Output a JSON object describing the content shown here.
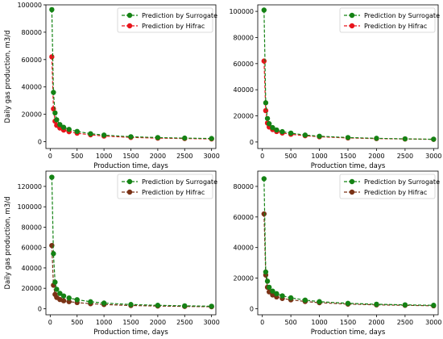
{
  "chart_data": [
    {
      "type": "line",
      "xlabel": "Production time,  days",
      "ylabel": "Daily gas production,  m3/d",
      "xlim": [
        -80,
        3080
      ],
      "ylim": [
        -5000,
        100000
      ],
      "xticks": [
        0,
        500,
        1000,
        1500,
        2000,
        2500,
        3000
      ],
      "yticks": [
        0,
        20000,
        40000,
        60000,
        80000,
        100000
      ],
      "grid": false,
      "legend": "top-right",
      "series": [
        {
          "name": "Prediction by Surrogate",
          "color": "#148214",
          "x": [
            30,
            60,
            90,
            120,
            180,
            250,
            350,
            500,
            750,
            1000,
            1500,
            2000,
            2500,
            3000
          ],
          "y": [
            96500,
            36000,
            21000,
            16000,
            12500,
            10500,
            9000,
            7500,
            5800,
            4800,
            3600,
            3000,
            2600,
            2300
          ]
        },
        {
          "name": "Prediction by Hifrac",
          "color": "#e8141c",
          "x": [
            30,
            60,
            90,
            120,
            180,
            250,
            350,
            500,
            750,
            1000,
            1500,
            2000,
            2500,
            3000
          ],
          "y": [
            62000,
            24000,
            15000,
            12000,
            10000,
            8500,
            7300,
            6200,
            5000,
            4100,
            3100,
            2600,
            2300,
            2000
          ]
        }
      ]
    },
    {
      "type": "line",
      "xlabel": "Production time,  days",
      "ylabel": "",
      "xlim": [
        -80,
        3080
      ],
      "ylim": [
        -5000,
        105000
      ],
      "xticks": [
        0,
        500,
        1000,
        1500,
        2000,
        2500,
        3000
      ],
      "yticks": [
        0,
        20000,
        40000,
        60000,
        80000,
        100000
      ],
      "grid": false,
      "legend": "top-right",
      "series": [
        {
          "name": "Prediction by Surrogate",
          "color": "#148214",
          "x": [
            30,
            60,
            90,
            120,
            180,
            250,
            350,
            500,
            750,
            1000,
            1500,
            2000,
            2500,
            3000
          ],
          "y": [
            101000,
            30000,
            18000,
            14000,
            11000,
            9200,
            7900,
            6800,
            5300,
            4400,
            3400,
            2800,
            2400,
            2100
          ]
        },
        {
          "name": "Prediction by Hifrac",
          "color": "#e8141c",
          "x": [
            30,
            60,
            90,
            120,
            180,
            250,
            350,
            500,
            750,
            1000,
            1500,
            2000,
            2500,
            3000
          ],
          "y": [
            62000,
            24000,
            14500,
            11500,
            9500,
            8000,
            6900,
            5900,
            4800,
            4000,
            3100,
            2600,
            2300,
            2000
          ]
        }
      ]
    },
    {
      "type": "line",
      "xlabel": "Production time,  days",
      "ylabel": "Daily gas production,  m3/d",
      "xlim": [
        -80,
        3080
      ],
      "ylim": [
        -6000,
        135000
      ],
      "xticks": [
        0,
        500,
        1000,
        1500,
        2000,
        2500,
        3000
      ],
      "yticks": [
        0,
        20000,
        40000,
        60000,
        80000,
        100000,
        120000
      ],
      "grid": false,
      "legend": "top-right",
      "series": [
        {
          "name": "Prediction by Surrogate",
          "color": "#148214",
          "x": [
            30,
            60,
            90,
            120,
            180,
            250,
            350,
            500,
            750,
            1000,
            1500,
            2000,
            2500,
            3000
          ],
          "y": [
            129000,
            54000,
            26000,
            19000,
            15000,
            12500,
            10500,
            8800,
            6800,
            5500,
            4100,
            3300,
            2800,
            2400
          ]
        },
        {
          "name": "Prediction by Hifrac",
          "color": "#7a3216",
          "x": [
            30,
            60,
            90,
            120,
            180,
            250,
            350,
            500,
            750,
            1000,
            1500,
            2000,
            2500,
            3000
          ],
          "y": [
            62000,
            23000,
            14000,
            11000,
            9000,
            7800,
            6900,
            6000,
            4900,
            4100,
            3100,
            2600,
            2200,
            1900
          ]
        }
      ]
    },
    {
      "type": "line",
      "xlabel": "Production time,  days",
      "ylabel": "",
      "xlim": [
        -80,
        3080
      ],
      "ylim": [
        -4000,
        90000
      ],
      "xticks": [
        0,
        500,
        1000,
        1500,
        2000,
        2500,
        3000
      ],
      "yticks": [
        0,
        20000,
        40000,
        60000,
        80000
      ],
      "grid": false,
      "legend": "top-right",
      "series": [
        {
          "name": "Prediction by Surrogate",
          "color": "#148214",
          "x": [
            30,
            60,
            90,
            120,
            180,
            250,
            350,
            500,
            750,
            1000,
            1500,
            2000,
            2500,
            3000
          ],
          "y": [
            85000,
            24000,
            18000,
            14000,
            11500,
            9800,
            8400,
            7100,
            5600,
            4600,
            3500,
            2900,
            2500,
            2200
          ]
        },
        {
          "name": "Prediction by Hifrac",
          "color": "#7a3216",
          "x": [
            30,
            60,
            90,
            120,
            180,
            250,
            350,
            500,
            750,
            1000,
            1500,
            2000,
            2500,
            3000
          ],
          "y": [
            62000,
            22000,
            14000,
            11000,
            9000,
            7700,
            6700,
            5800,
            4700,
            3900,
            3000,
            2500,
            2200,
            1900
          ]
        }
      ]
    }
  ]
}
